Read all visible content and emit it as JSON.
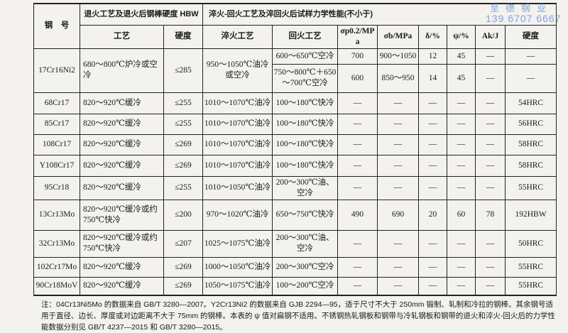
{
  "watermark": {
    "company": "至德钢业",
    "phone": "139 6707 6667"
  },
  "header": {
    "steel_no": "钢　号",
    "annealing_group": "退火工艺及退火后钢棒硬度 HBW",
    "qt_group": "淬火-回火工艺及淬回火后试样力学性能(不小于)",
    "columns": [
      "工艺",
      "硬度",
      "淬火工艺",
      "回火工艺",
      "σp0.2/MPa",
      "σb/MPa",
      "δ/%",
      "ψ/%",
      "Ak/J",
      "硬度"
    ]
  },
  "rows": [
    {
      "steel": "17Cr16Ni2",
      "anneal": "680～800℃炉冷或空冷",
      "hbw": "≤285",
      "quench": "950～1050℃油冷或空冷",
      "sub": [
        {
          "temper": "600～650℃空冷",
          "rp": "700",
          "rm": "900～1050",
          "delta": "12",
          "psi": "45",
          "ak": "—",
          "hard": "—"
        },
        {
          "temper": "750～800℃＋650～700℃空冷",
          "rp": "600",
          "rm": "850～950",
          "delta": "14",
          "psi": "45",
          "ak": "—",
          "hard": "—"
        }
      ]
    },
    {
      "steel": "68Cr17",
      "anneal": "820～920℃缓冷",
      "hbw": "≤255",
      "quench": "1010～1070℃油冷",
      "temper": "100～180℃快冷",
      "rp": "—",
      "rm": "—",
      "delta": "—",
      "psi": "—",
      "ak": "—",
      "hard": "54HRC"
    },
    {
      "steel": "85Cr17",
      "anneal": "820～920℃缓冷",
      "hbw": "≤255",
      "quench": "1010～1070℃油冷",
      "temper": "100～180℃快冷",
      "rp": "—",
      "rm": "—",
      "delta": "—",
      "psi": "—",
      "ak": "—",
      "hard": "56HRC"
    },
    {
      "steel": "108Cr17",
      "anneal": "820～920℃缓冷",
      "hbw": "≤269",
      "quench": "1010～1070℃油冷",
      "temper": "100～180℃快冷",
      "rp": "—",
      "rm": "—",
      "delta": "—",
      "psi": "—",
      "ak": "—",
      "hard": "58HRC"
    },
    {
      "steel": "Y108Cr17",
      "anneal": "820～920℃缓冷",
      "hbw": "≤269",
      "quench": "1010～1070℃油冷",
      "temper": "100～180℃快冷",
      "rp": "—",
      "rm": "—",
      "delta": "—",
      "psi": "—",
      "ak": "—",
      "hard": "58HRC"
    },
    {
      "steel": "95Cr18",
      "anneal": "820～920℃缓冷",
      "hbw": "≤255",
      "quench": "1010～1050℃油冷",
      "temper": "200～300℃油、空冷",
      "rp": "—",
      "rm": "—",
      "delta": "—",
      "psi": "—",
      "ak": "—",
      "hard": "55HRC"
    },
    {
      "steel": "13Cr13Mo",
      "anneal": "820～920℃缓冷或约750℃快冷",
      "hbw": "≤200",
      "quench": "970～1020℃油冷",
      "temper": "650～750℃快冷",
      "rp": "490",
      "rm": "690",
      "delta": "20",
      "psi": "60",
      "ak": "78",
      "hard": "192HBW"
    },
    {
      "steel": "32Cr13Mo",
      "anneal": "820～920℃缓冷或约750℃快冷",
      "hbw": "≤207",
      "quench": "1025～1075℃油冷",
      "temper": "200～300℃油、空冷",
      "rp": "—",
      "rm": "—",
      "delta": "—",
      "psi": "—",
      "ak": "—",
      "hard": "50HRC"
    },
    {
      "steel": "102Cr17Mo",
      "anneal": "820～920℃缓冷",
      "hbw": "≤269",
      "quench": "1000～1050℃油冷",
      "temper": "200～300℃空冷",
      "rp": "—",
      "rm": "—",
      "delta": "—",
      "psi": "—",
      "ak": "—",
      "hard": "55HRC"
    },
    {
      "steel": "90Cr18MoV",
      "anneal": "820～920℃缓冷",
      "hbw": "≤269",
      "quench": "1050～1075℃油冷",
      "temper": "100～200℃空冷",
      "rp": "—",
      "rm": "—",
      "delta": "—",
      "psi": "—",
      "ak": "—",
      "hard": "55HRC"
    }
  ],
  "note": "注：04Cr13Ni5Mo 的数据来自 GB/T 3280—2007。Y2Cr13Ni2 的数据来自 GJB 2294—95，适于尺寸不大于 250mm 锻制、轧制和冷拉的钢棒。其余钢号适用于直径、边长、厚度或对边距离不大于 75mm 的钢棒。本表的 ψ 值对扁钢不适用。不锈钢热轧钢板和钢带与冷轧钢板和钢带的退火和淬火-回火后的力学性能数据分别见 GB/T 4237—2015 和 GB/T 3280—2015。"
}
